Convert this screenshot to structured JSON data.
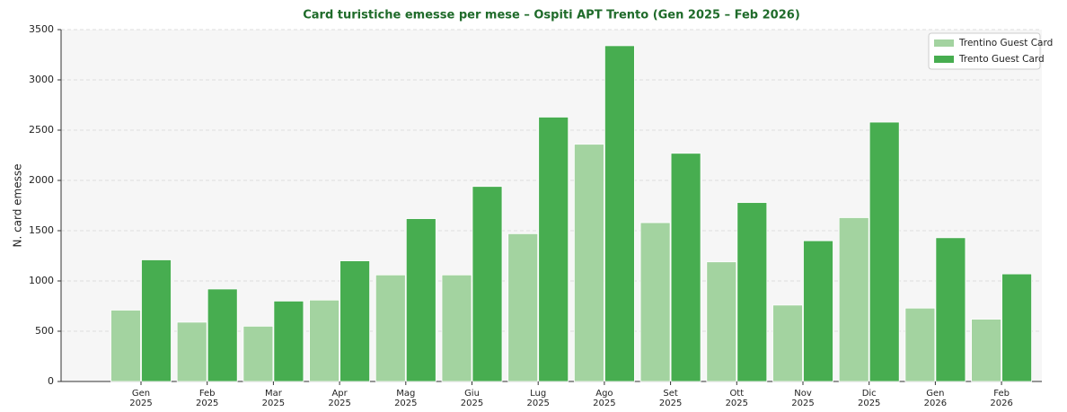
{
  "chart_data": {
    "type": "bar",
    "title": "Card turistiche emesse per mese – Ospiti APT Trento (Gen 2025 – Feb 2026)",
    "y_label": "N. card emesse",
    "categories": [
      "Gen\n2025",
      "Feb\n2025",
      "Mar\n2025",
      "Apr\n2025",
      "Mag\n2025",
      "Giu\n2025",
      "Lug\n2025",
      "Ago\n2025",
      "Set\n2025",
      "Ott\n2025",
      "Nov\n2025",
      "Dic\n2025",
      "Gen\n2026",
      "Feb\n2026"
    ],
    "series": [
      {
        "name": "Trentino Guest Card",
        "color": "#a3d3a0",
        "values": [
          710,
          590,
          550,
          810,
          1060,
          1060,
          1470,
          2360,
          1580,
          1190,
          760,
          1630,
          730,
          620
        ]
      },
      {
        "name": "Trento Guest Card",
        "color": "#47ad50",
        "values": [
          1210,
          920,
          800,
          1200,
          1620,
          1940,
          2630,
          3340,
          2270,
          1780,
          1400,
          2580,
          1430,
          1070
        ]
      }
    ],
    "ylim": [
      0,
      3500
    ],
    "yticks": [
      0,
      500,
      1000,
      1500,
      2000,
      2500,
      3000,
      3500
    ],
    "grid": true,
    "legend": "upper-right"
  }
}
